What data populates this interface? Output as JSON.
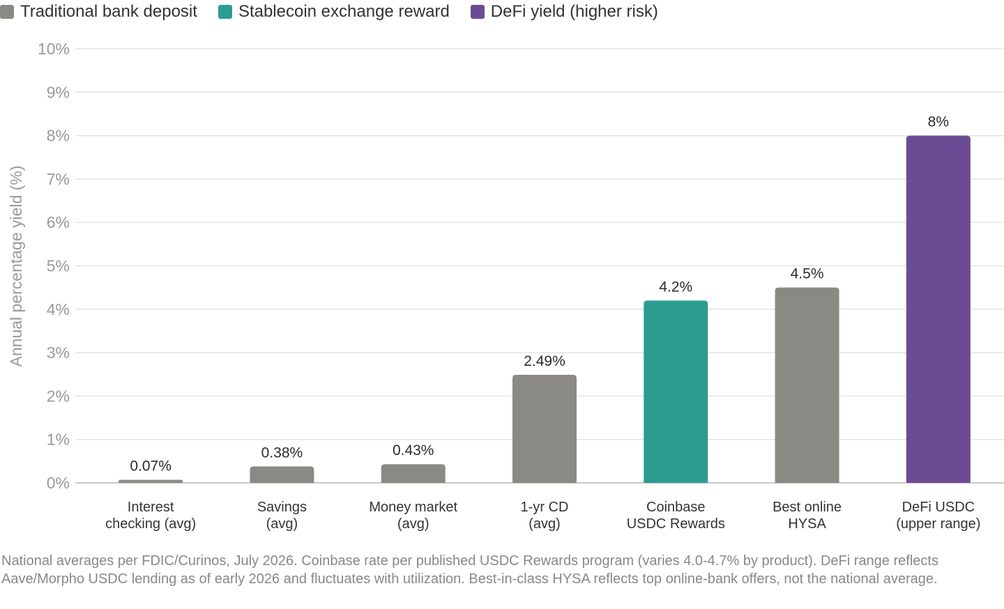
{
  "legend": [
    {
      "label": "Traditional bank deposit",
      "color": "#8a8984"
    },
    {
      "label": "Stablecoin exchange reward",
      "color": "#2a9d8f"
    },
    {
      "label": "DeFi yield (higher risk)",
      "color": "#6b4c94"
    }
  ],
  "chart_data": {
    "type": "bar",
    "title": "",
    "xlabel": "",
    "ylabel": "Annual percentage yield (%)",
    "ylim": [
      0,
      10
    ],
    "yticks": [
      0,
      1,
      2,
      3,
      4,
      5,
      6,
      7,
      8,
      9,
      10
    ],
    "ytick_suffix": "%",
    "grid": true,
    "legend_position": "top-left",
    "categories": [
      [
        "Interest",
        "checking (avg)"
      ],
      [
        "Savings",
        "(avg)"
      ],
      [
        "Money market",
        "(avg)"
      ],
      [
        "1-yr CD",
        "(avg)"
      ],
      [
        "Coinbase",
        "USDC Rewards"
      ],
      [
        "Best online",
        "HYSA"
      ],
      [
        "DeFi USDC",
        "(upper range)"
      ]
    ],
    "values": [
      0.07,
      0.38,
      0.43,
      2.49,
      4.2,
      4.5,
      8
    ],
    "data_labels": [
      "0.07%",
      "0.38%",
      "0.43%",
      "2.49%",
      "4.2%",
      "4.5%",
      "8%"
    ],
    "groups": [
      "Traditional bank deposit",
      "Traditional bank deposit",
      "Traditional bank deposit",
      "Traditional bank deposit",
      "Stablecoin exchange reward",
      "Traditional bank deposit",
      "DeFi yield (higher risk)"
    ]
  },
  "footnote": "National averages per FDIC/Curinos, July 2026. Coinbase rate per published USDC Rewards program (varies 4.0-4.7% by product). DeFi range reflects Aave/Morpho USDC lending as of early 2026 and fluctuates with utilization. Best-in-class HYSA reflects top online-bank offers, not the national average."
}
